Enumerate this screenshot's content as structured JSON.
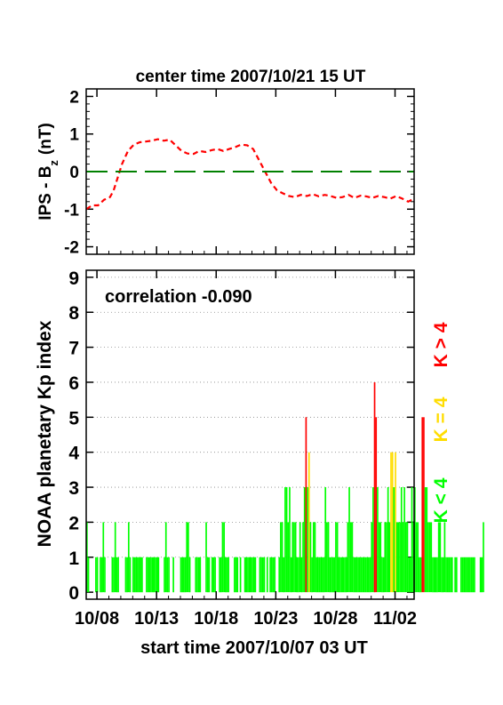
{
  "chart_data": [
    {
      "type": "line",
      "title": "center time 2007/10/21 15 UT",
      "ylabel_main": "IPS - B",
      "ylabel_sub": "z",
      "ylabel_unit": "(nT)",
      "ylim": [
        -2.2,
        2.2
      ],
      "yticks": [
        "2",
        "1",
        "0",
        "-1",
        "-2"
      ],
      "xlim_days": [
        0,
        27.5
      ],
      "series": [
        {
          "style": "dashed",
          "color": "#ff0000",
          "x": [
            0,
            0.5,
            1,
            1.5,
            2,
            2.3,
            2.6,
            3,
            3.5,
            4,
            4.5,
            5,
            5.5,
            6,
            6.5,
            7,
            7.5,
            8,
            8.5,
            9,
            9.5,
            10,
            10.5,
            11,
            11.5,
            12,
            12.5,
            13,
            13.5,
            14,
            14.5,
            15,
            15.5,
            16,
            16.5,
            17,
            17.5,
            18,
            18.5,
            19,
            19.5,
            20,
            20.5,
            21,
            21.5,
            22,
            22.5,
            23,
            23.5,
            24,
            24.5,
            25,
            25.5,
            26,
            26.5,
            27,
            27.5
          ],
          "y": [
            -1.0,
            -0.9,
            -0.9,
            -0.75,
            -0.68,
            -0.5,
            -0.2,
            0.2,
            0.55,
            0.72,
            0.78,
            0.8,
            0.82,
            0.86,
            0.82,
            0.85,
            0.7,
            0.55,
            0.48,
            0.47,
            0.55,
            0.52,
            0.57,
            0.6,
            0.55,
            0.6,
            0.65,
            0.72,
            0.7,
            0.6,
            0.3,
            0.0,
            -0.3,
            -0.5,
            -0.58,
            -0.65,
            -0.68,
            -0.62,
            -0.65,
            -0.6,
            -0.66,
            -0.62,
            -0.65,
            -0.7,
            -0.68,
            -0.62,
            -0.7,
            -0.64,
            -0.66,
            -0.7,
            -0.65,
            -0.68,
            -0.72,
            -0.65,
            -0.72,
            -0.8,
            -0.72
          ]
        },
        {
          "style": "long-dashed",
          "color": "#008000",
          "x": [
            0,
            27.5
          ],
          "y": [
            0,
            0
          ]
        }
      ]
    },
    {
      "type": "bar",
      "ylabel": "NOAA planetary Kp index",
      "xlabel": "start time 2007/10/07 03 UT",
      "annotation": "correlation -0.090",
      "ylim": [
        -0.2,
        9.2
      ],
      "yticks": [
        "9",
        "8",
        "7",
        "6",
        "5",
        "4",
        "3",
        "2",
        "1",
        "0"
      ],
      "xlim_days": [
        0,
        27.5
      ],
      "xticks": [
        {
          "label": "10/08",
          "day": 0.9
        },
        {
          "label": "10/13",
          "day": 5.9
        },
        {
          "label": "10/18",
          "day": 10.9
        },
        {
          "label": "10/23",
          "day": 15.9
        },
        {
          "label": "10/28",
          "day": 20.9
        },
        {
          "label": "11/02",
          "day": 25.9
        }
      ],
      "grid": "dotted horizontal",
      "legend": [
        "K < 4",
        "K = 4",
        "K > 4"
      ],
      "legend_colors": [
        "#00ff00",
        "#ffdd00",
        "#ff0000"
      ],
      "legend_placement": "right, vertical",
      "kp_step_days": 0.125,
      "kp_values": [
        2,
        1,
        0,
        0,
        0,
        0,
        1,
        1,
        0,
        1,
        1,
        2,
        1,
        0,
        0,
        0,
        0,
        1,
        1,
        2,
        1,
        1,
        0,
        0,
        0,
        0,
        1,
        1,
        2,
        1,
        0,
        1,
        1,
        1,
        1,
        1,
        1,
        1,
        0,
        0,
        1,
        1,
        1,
        1,
        1,
        1,
        1,
        1,
        1,
        0,
        0,
        0,
        1,
        2,
        1,
        1,
        0,
        0,
        1,
        0,
        0,
        0,
        0,
        1,
        1,
        1,
        1,
        2,
        2,
        1,
        0,
        0,
        0,
        1,
        1,
        1,
        1,
        0,
        0,
        0,
        2,
        1,
        1,
        0,
        1,
        1,
        1,
        0,
        0,
        1,
        1,
        2,
        2,
        1,
        1,
        1,
        0,
        0,
        0,
        1,
        1,
        1,
        0,
        1,
        0,
        0,
        1,
        1,
        1,
        1,
        1,
        1,
        1,
        1,
        0,
        0,
        1,
        1,
        1,
        1,
        0,
        1,
        0,
        1,
        1,
        1,
        1,
        0,
        0,
        1,
        2,
        2,
        1,
        3,
        3,
        2,
        3,
        1,
        2,
        2,
        2,
        1,
        1,
        2,
        1,
        2,
        3,
        5,
        3,
        4,
        2,
        1,
        2,
        2,
        1,
        1,
        1,
        1,
        1,
        1,
        3,
        2,
        2,
        1,
        1,
        1,
        1,
        2,
        2,
        1,
        1,
        1,
        1,
        1,
        1,
        2,
        3,
        2,
        2,
        1,
        1,
        1,
        1,
        1,
        1,
        1,
        1,
        1,
        1,
        1,
        1,
        2,
        3,
        6,
        5,
        3,
        2,
        2,
        1,
        1,
        2,
        2,
        3,
        2,
        4,
        4,
        3,
        4,
        2,
        2,
        2,
        3,
        2,
        3,
        2,
        2,
        1,
        1,
        3,
        2,
        3,
        2,
        2,
        1,
        1,
        5,
        5,
        3,
        3,
        2,
        2,
        2,
        1,
        1,
        1,
        1,
        2,
        2,
        1,
        1,
        2,
        1,
        1,
        1,
        1,
        1,
        0,
        1,
        1,
        0,
        0,
        1,
        1,
        1,
        1,
        1,
        1,
        1,
        1,
        1,
        1,
        0,
        0,
        0,
        1,
        1,
        2
      ]
    }
  ]
}
